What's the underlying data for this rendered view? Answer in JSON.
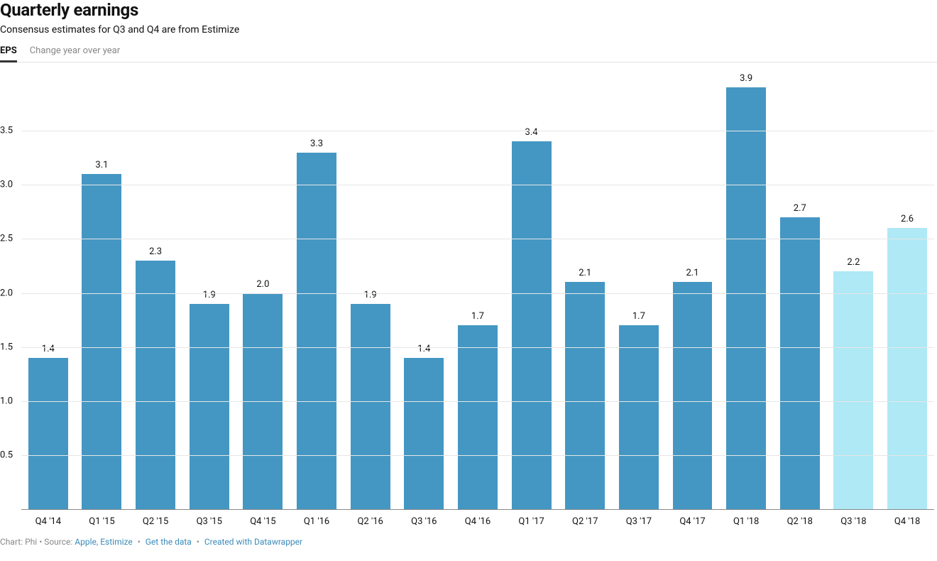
{
  "header": {
    "title": "Quarterly earnings",
    "subtitle": "Consensus estimates for Q3 and Q4 are from Estimize"
  },
  "tabs": {
    "items": [
      {
        "label": "EPS",
        "active": true
      },
      {
        "label": "Change year over year",
        "active": false
      }
    ]
  },
  "chart": {
    "type": "bar",
    "ylim": [
      0,
      4.0
    ],
    "yticks": [
      0.5,
      1.0,
      1.5,
      2.0,
      2.5,
      3.0,
      3.5
    ],
    "ytick_labels": [
      "0.5",
      "1.0",
      "1.5",
      "2.0",
      "2.5",
      "3.0",
      "3.5"
    ],
    "grid_color": "#e6e6e6",
    "axis_color": "#888888",
    "background_color": "#ffffff",
    "bar_width_ratio": 0.74,
    "label_fontsize": 13,
    "tick_fontsize": 13,
    "colors": {
      "actual": "#4497c3",
      "estimate": "#aee9f5"
    },
    "categories": [
      "Q4 '14",
      "Q1 '15",
      "Q2 '15",
      "Q3 '15",
      "Q4 '15",
      "Q1 '16",
      "Q2 '16",
      "Q3 '16",
      "Q4 '16",
      "Q1 '17",
      "Q2 '17",
      "Q3 '17",
      "Q4 '17",
      "Q1 '18",
      "Q2 '18",
      "Q3 '18",
      "Q4 '18"
    ],
    "series": [
      {
        "value": 1.4,
        "label": "1.4",
        "kind": "actual"
      },
      {
        "value": 3.1,
        "label": "3.1",
        "kind": "actual"
      },
      {
        "value": 2.3,
        "label": "2.3",
        "kind": "actual"
      },
      {
        "value": 1.9,
        "label": "1.9",
        "kind": "actual"
      },
      {
        "value": 2.0,
        "label": "2.0",
        "kind": "actual"
      },
      {
        "value": 3.3,
        "label": "3.3",
        "kind": "actual"
      },
      {
        "value": 1.9,
        "label": "1.9",
        "kind": "actual"
      },
      {
        "value": 1.4,
        "label": "1.4",
        "kind": "actual"
      },
      {
        "value": 1.7,
        "label": "1.7",
        "kind": "actual"
      },
      {
        "value": 3.4,
        "label": "3.4",
        "kind": "actual"
      },
      {
        "value": 2.1,
        "label": "2.1",
        "kind": "actual"
      },
      {
        "value": 1.7,
        "label": "1.7",
        "kind": "actual"
      },
      {
        "value": 2.1,
        "label": "2.1",
        "kind": "actual"
      },
      {
        "value": 3.9,
        "label": "3.9",
        "kind": "actual"
      },
      {
        "value": 2.7,
        "label": "2.7",
        "kind": "actual"
      },
      {
        "value": 2.2,
        "label": "2.2",
        "kind": "estimate"
      },
      {
        "value": 2.6,
        "label": "2.6",
        "kind": "estimate"
      }
    ]
  },
  "footer": {
    "prefix": "Chart: Phi • Source: ",
    "source_link": "Apple, Estimize",
    "sep": " • ",
    "get_data": "Get the data",
    "created_with": "Created with Datawrapper"
  }
}
